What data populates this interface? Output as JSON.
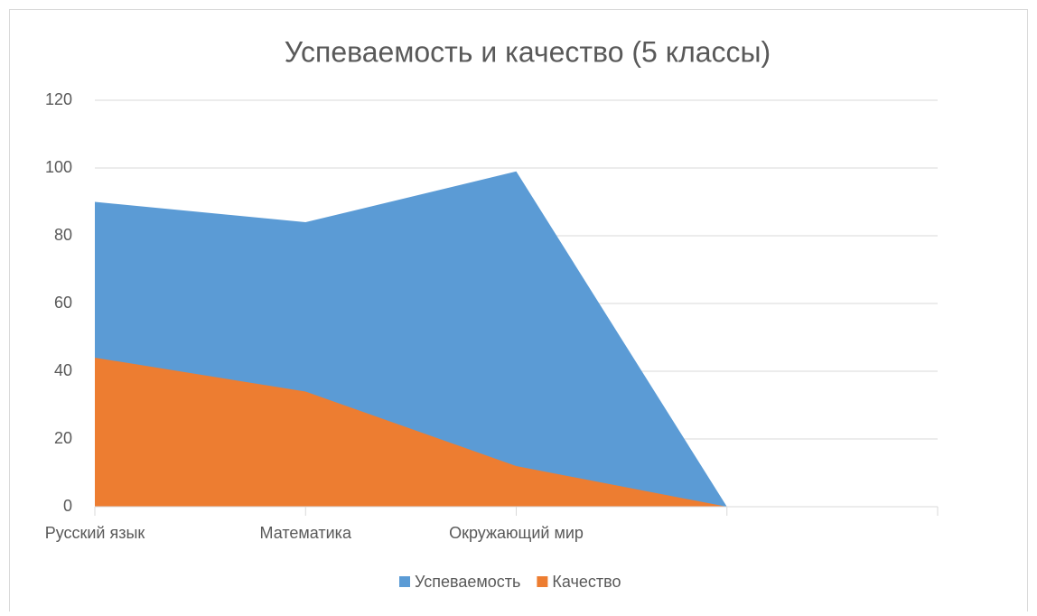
{
  "chart_data": {
    "type": "area",
    "title": "Успеваемость и качество (5 классы)",
    "categories": [
      "Русский язык",
      "Математика",
      "Окружающий мир",
      null,
      null
    ],
    "series": [
      {
        "name": "Успеваемость",
        "color": "#5b9bd5",
        "values": [
          90,
          84,
          99,
          0,
          null
        ]
      },
      {
        "name": "Качество",
        "color": "#ed7d31",
        "values": [
          44,
          34,
          12,
          0,
          null
        ]
      }
    ],
    "ylim": [
      0,
      120
    ],
    "yticks": [
      0,
      20,
      40,
      60,
      80,
      100,
      120
    ],
    "grid": true,
    "legend": "bottom"
  }
}
